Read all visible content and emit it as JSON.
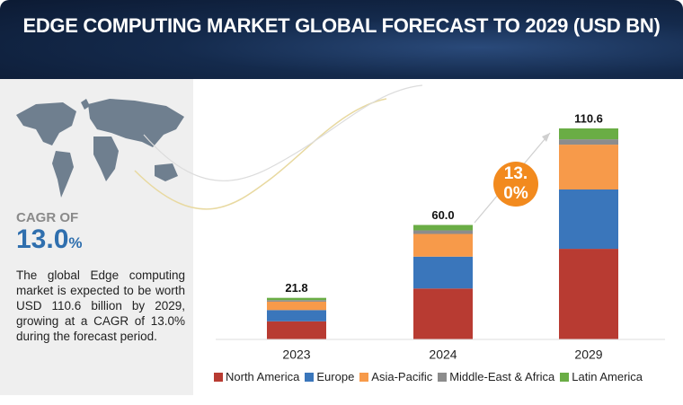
{
  "chart_data": {
    "type": "stacked_bar",
    "title": "EDGE COMPUTING MARKET GLOBAL FORECAST TO 2029 (USD BN)",
    "categories": [
      "2023",
      "2024",
      "2029"
    ],
    "series": [
      {
        "name": "North America",
        "color": "#b83b32",
        "values": [
          9.5,
          26.7,
          47.5
        ]
      },
      {
        "name": "Europe",
        "color": "#3a76bb",
        "values": [
          5.9,
          16.7,
          31.1
        ]
      },
      {
        "name": "Asia-Pacific",
        "color": "#f79a4a",
        "values": [
          4.4,
          11.9,
          23.5
        ]
      },
      {
        "name": "Middle-East & Africa",
        "color": "#8c8c8c",
        "values": [
          0.8,
          1.9,
          2.8
        ]
      },
      {
        "name": "Latin America",
        "color": "#6aad45",
        "values": [
          1.2,
          2.8,
          5.7
        ]
      }
    ],
    "totals": [
      21.8,
      60,
      110.6
    ],
    "total_labels": [
      "21.8",
      "60.0",
      "110.6"
    ],
    "cagr_bubble": [
      "13.",
      "0%"
    ],
    "legend": "bottom"
  },
  "side_panel": {
    "cagr_label": "CAGR OF",
    "cagr_value": "13.0",
    "cagr_unit": "%",
    "description": "The global Edge computing market is expected to be worth USD 110.6 billion by 2029, growing at a CAGR of 13.0% during the forecast period."
  }
}
